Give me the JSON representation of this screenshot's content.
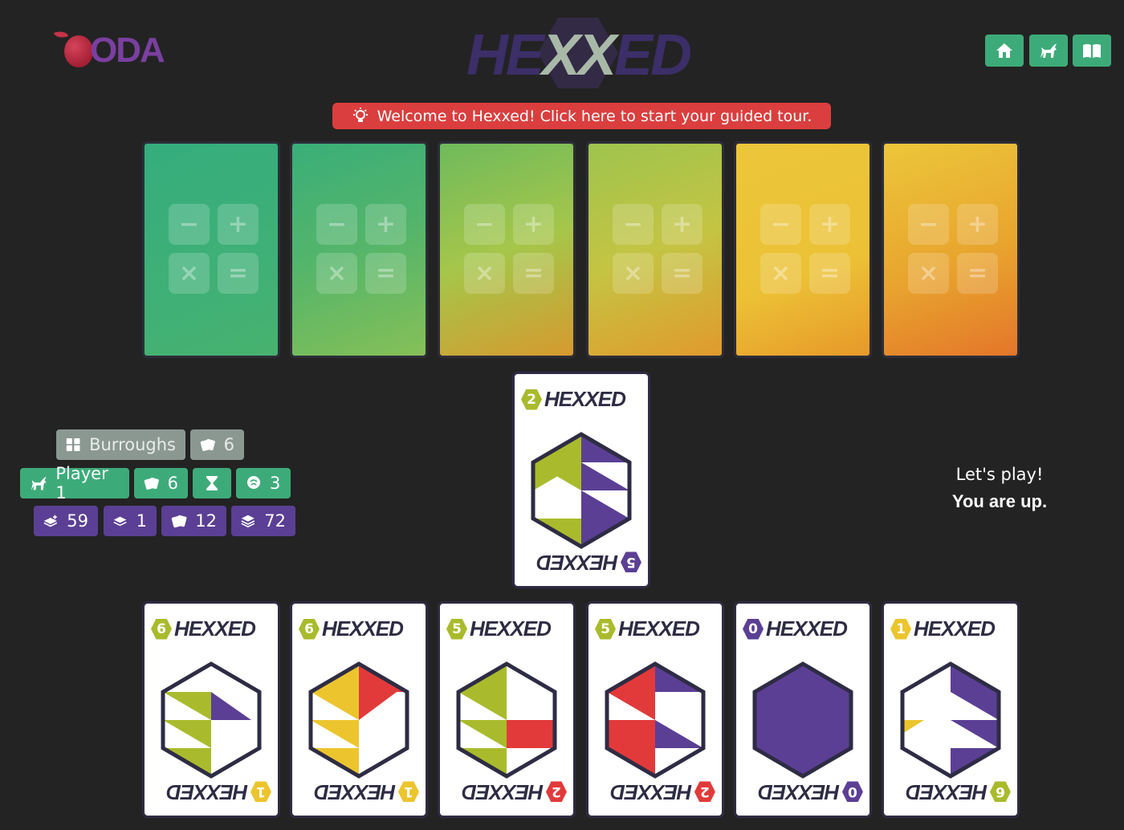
{
  "header": {
    "logo_text": "ODA",
    "title": "HEXXED",
    "nav": [
      {
        "name": "home-icon"
      },
      {
        "name": "unicorn-icon"
      },
      {
        "name": "book-icon"
      }
    ]
  },
  "banner": {
    "text": "Welcome to Hexxed! Click here to start your guided tour.",
    "icon": "lightbulb-icon",
    "color": "#db3e3e"
  },
  "colors": {
    "green": "#3dab79",
    "purple": "#5b3f94",
    "lime": "#a9bb2c",
    "yellow": "#ecc52e",
    "red": "#e23a3a",
    "navy": "#2e2c44"
  },
  "opponent_cards": [
    {
      "icon": "operators-icon",
      "ops": [
        "−",
        "+",
        "×",
        "="
      ]
    },
    {
      "icon": "operators-icon",
      "ops": [
        "−",
        "+",
        "×",
        "="
      ]
    },
    {
      "icon": "operators-icon",
      "ops": [
        "−",
        "+",
        "×",
        "="
      ]
    },
    {
      "icon": "operators-icon",
      "ops": [
        "−",
        "+",
        "×",
        "="
      ]
    },
    {
      "icon": "operators-icon",
      "ops": [
        "−",
        "+",
        "×",
        "="
      ]
    },
    {
      "icon": "operators-icon",
      "ops": [
        "−",
        "+",
        "×",
        "="
      ]
    }
  ],
  "center_card": {
    "top_number": "2",
    "bottom_number": "5",
    "brand": "HEXXED"
  },
  "hand_cards": [
    {
      "top_number": "6",
      "bottom_number": "1",
      "brand": "HEXXED"
    },
    {
      "top_number": "6",
      "bottom_number": "1",
      "brand": "HEXXED"
    },
    {
      "top_number": "5",
      "bottom_number": "2",
      "brand": "HEXXED"
    },
    {
      "top_number": "5",
      "bottom_number": "2",
      "brand": "HEXXED"
    },
    {
      "top_number": "0",
      "bottom_number": "0",
      "brand": "HEXXED"
    },
    {
      "top_number": "1",
      "bottom_number": "6",
      "brand": "HEXXED"
    }
  ],
  "opponent": {
    "name": "Burroughs",
    "cards": "6"
  },
  "player": {
    "name": "Player 1",
    "cards": "6",
    "hourglass_icon": "hourglass-icon",
    "score": "3"
  },
  "piles": {
    "draw": "59",
    "discard": "1",
    "cards": "12",
    "total": "72"
  },
  "status": {
    "line1": "Let's play!",
    "line2": "You are up."
  }
}
